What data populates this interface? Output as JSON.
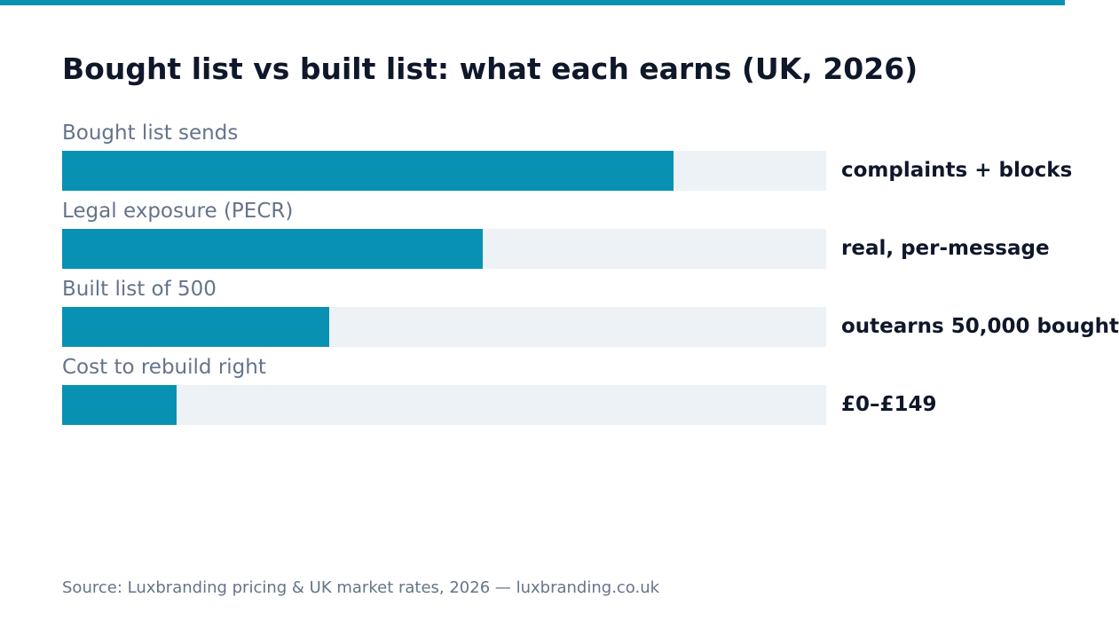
{
  "chart_data": {
    "type": "bar",
    "orientation": "horizontal",
    "title": "Bought list vs built list: what each earns (UK, 2026)",
    "categories": [
      "Bought list sends",
      "Legal exposure (PECR)",
      "Built list of 500",
      "Cost to rebuild right"
    ],
    "values": [
      80,
      55,
      35,
      15
    ],
    "xlim": [
      0,
      100
    ],
    "value_labels": [
      "complaints + blocks",
      "real, per-message",
      "outearns 50,000 bought",
      "£0–£149"
    ],
    "grid": false,
    "legend": "none",
    "source": "Source: Luxbranding pricing & UK market rates, 2026 — luxbranding.co.uk"
  },
  "colors": {
    "accent": "#0891b2",
    "bar_fill": "#0891b2",
    "bar_track": "#edf2f7",
    "title": "#0f172a",
    "label": "#64748b"
  }
}
